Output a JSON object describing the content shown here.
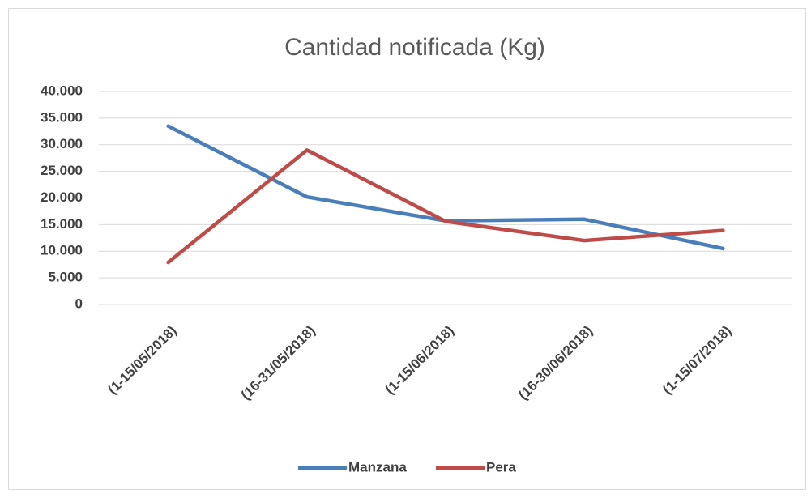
{
  "chart_data": {
    "type": "line",
    "title": "Cantidad notificada  (Kg)",
    "categories": [
      "(1-15/05/2018)",
      "(16-31/05/2018)",
      "(1-15/06/2018)",
      "(16-30/06/2018)",
      "(1-15/07/2018)"
    ],
    "series": [
      {
        "name": "Manzana",
        "color": "#4a7ebb",
        "values": [
          33500,
          20200,
          15700,
          16000,
          10500
        ]
      },
      {
        "name": "Pera",
        "color": "#be4b48",
        "values": [
          7900,
          29000,
          15600,
          12000,
          13900
        ]
      }
    ],
    "ylim": [
      0,
      40000
    ],
    "yticks": [
      0,
      {
        "value": 5000,
        "label": "5.000"
      },
      {
        "value": 10000,
        "label": "10.000"
      },
      {
        "value": 15000,
        "label": "15.000"
      },
      {
        "value": 20000,
        "label": "20.000"
      },
      {
        "value": 25000,
        "label": "25.000"
      },
      {
        "value": 30000,
        "label": "30.000"
      },
      {
        "value": 35000,
        "label": "35.000"
      },
      {
        "value": 40000,
        "label": "40.000"
      }
    ],
    "grid": true,
    "legend": "bottom"
  }
}
